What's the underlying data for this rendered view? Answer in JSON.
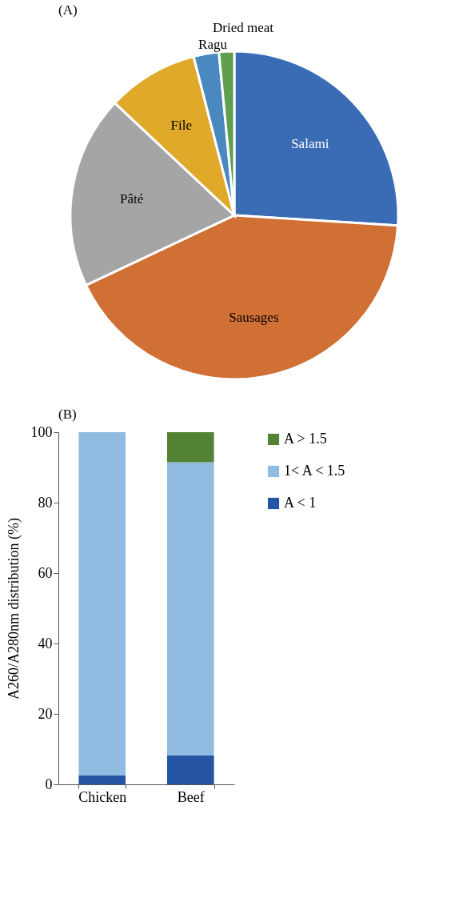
{
  "chart_data": [
    {
      "type": "pie",
      "title": "(A)",
      "categories": [
        "Salami",
        "Sausages",
        "Pâté",
        "File",
        "Ragu",
        "Dried meat"
      ],
      "values": [
        26,
        42,
        19,
        9,
        2.5,
        1.5
      ],
      "colors": [
        "#3a6bb5",
        "#d07035",
        "#a5a5a5",
        "#e0a92a",
        "#4a88c0",
        "#5fa050"
      ],
      "legend": false
    },
    {
      "type": "bar",
      "title": "(B)",
      "stacked": true,
      "categories": [
        "Chicken",
        "Beef"
      ],
      "ylabel": "A260/A280nm distribution (%)",
      "ylim": [
        0,
        100
      ],
      "yticks": [
        0,
        20,
        40,
        60,
        80,
        100
      ],
      "grid": false,
      "legend": "right",
      "series": [
        {
          "name": "A < 1",
          "color": "#2655a6",
          "values": [
            2.5,
            8.2
          ]
        },
        {
          "name": "1< A < 1.5",
          "color": "#8fbce0",
          "values": [
            97.5,
            83.3
          ]
        },
        {
          "name": "A > 1.5",
          "color": "#548235",
          "values": [
            0,
            8.5
          ]
        }
      ]
    }
  ]
}
